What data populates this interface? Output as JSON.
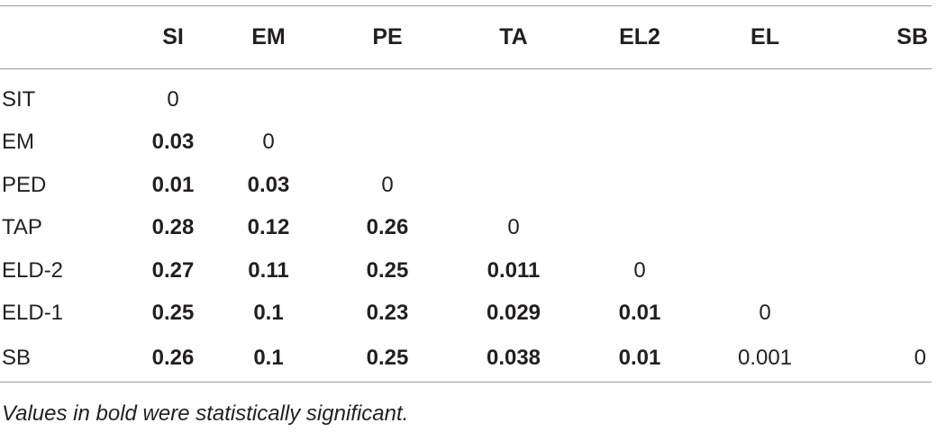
{
  "table": {
    "columns": [
      "",
      "SI",
      "EM",
      "PE",
      "TA",
      "EL2",
      "EL",
      "SB"
    ],
    "rows": [
      {
        "label": "SIT",
        "cells": [
          {
            "v": "0",
            "bold": false
          },
          {
            "v": "",
            "bold": false
          },
          {
            "v": "",
            "bold": false
          },
          {
            "v": "",
            "bold": false
          },
          {
            "v": "",
            "bold": false
          },
          {
            "v": "",
            "bold": false
          },
          {
            "v": "",
            "bold": false
          }
        ]
      },
      {
        "label": "EM",
        "cells": [
          {
            "v": "0.03",
            "bold": true
          },
          {
            "v": "0",
            "bold": false
          },
          {
            "v": "",
            "bold": false
          },
          {
            "v": "",
            "bold": false
          },
          {
            "v": "",
            "bold": false
          },
          {
            "v": "",
            "bold": false
          },
          {
            "v": "",
            "bold": false
          }
        ]
      },
      {
        "label": "PED",
        "cells": [
          {
            "v": "0.01",
            "bold": true
          },
          {
            "v": "0.03",
            "bold": true
          },
          {
            "v": "0",
            "bold": false
          },
          {
            "v": "",
            "bold": false
          },
          {
            "v": "",
            "bold": false
          },
          {
            "v": "",
            "bold": false
          },
          {
            "v": "",
            "bold": false
          }
        ]
      },
      {
        "label": "TAP",
        "cells": [
          {
            "v": "0.28",
            "bold": true
          },
          {
            "v": "0.12",
            "bold": true
          },
          {
            "v": "0.26",
            "bold": true
          },
          {
            "v": "0",
            "bold": false
          },
          {
            "v": "",
            "bold": false
          },
          {
            "v": "",
            "bold": false
          },
          {
            "v": "",
            "bold": false
          }
        ]
      },
      {
        "label": "ELD-2",
        "cells": [
          {
            "v": "0.27",
            "bold": true
          },
          {
            "v": "0.11",
            "bold": true
          },
          {
            "v": "0.25",
            "bold": true
          },
          {
            "v": "0.011",
            "bold": true
          },
          {
            "v": "0",
            "bold": false
          },
          {
            "v": "",
            "bold": false
          },
          {
            "v": "",
            "bold": false
          }
        ]
      },
      {
        "label": "ELD-1",
        "cells": [
          {
            "v": "0.25",
            "bold": true
          },
          {
            "v": "0.1",
            "bold": true
          },
          {
            "v": "0.23",
            "bold": true
          },
          {
            "v": "0.029",
            "bold": true
          },
          {
            "v": "0.01",
            "bold": true
          },
          {
            "v": "0",
            "bold": false
          },
          {
            "v": "",
            "bold": false
          }
        ]
      },
      {
        "label": "SB",
        "cells": [
          {
            "v": "0.26",
            "bold": true
          },
          {
            "v": "0.1",
            "bold": true
          },
          {
            "v": "0.25",
            "bold": true
          },
          {
            "v": "0.038",
            "bold": true
          },
          {
            "v": "0.01",
            "bold": true
          },
          {
            "v": "0.001",
            "bold": false
          },
          {
            "v": "0",
            "bold": false
          }
        ]
      }
    ]
  },
  "footnote": "Values in bold were statistically significant.",
  "colors": {
    "text": "#231f20",
    "rule": "#9a9a9a"
  }
}
